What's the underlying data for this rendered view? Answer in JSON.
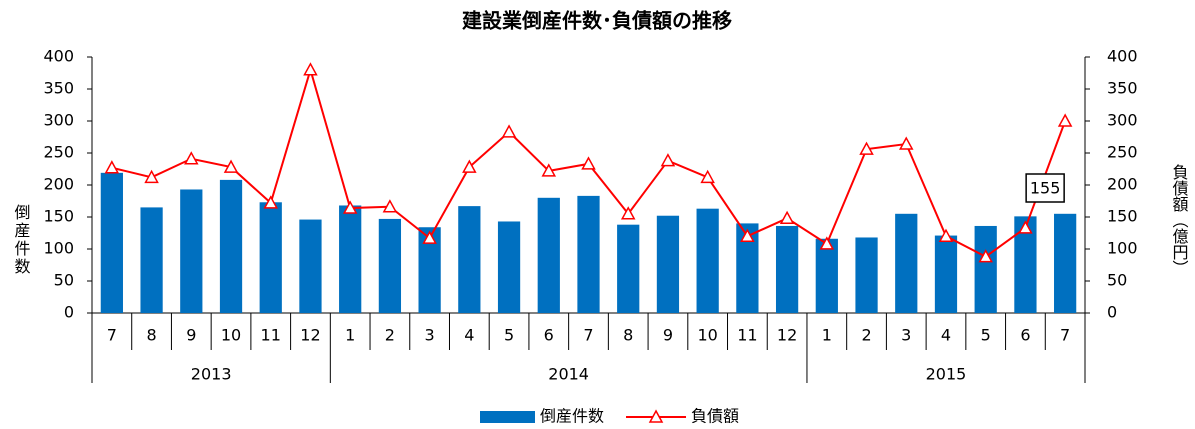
{
  "chart_data": {
    "type": "bar-line",
    "title": "建設業倒産件数･負債額の推移",
    "groups": [
      {
        "label": "2013",
        "months": [
          "7",
          "8",
          "9",
          "10",
          "11",
          "12"
        ]
      },
      {
        "label": "2014",
        "months": [
          "1",
          "2",
          "3",
          "4",
          "5",
          "6",
          "7",
          "8",
          "9",
          "10",
          "11",
          "12"
        ]
      },
      {
        "label": "2015",
        "months": [
          "1",
          "2",
          "3",
          "4",
          "5",
          "6",
          "7"
        ]
      }
    ],
    "y_label": "倒産件数",
    "y2_label": "負債額（億円）",
    "series": [
      {
        "name": "倒産件数",
        "type": "bar",
        "color": "#0070c0",
        "values": [
          219,
          165,
          193,
          208,
          173,
          146,
          168,
          147,
          134,
          167,
          143,
          180,
          183,
          138,
          152,
          163,
          140,
          136,
          116,
          118,
          155,
          121,
          136,
          151,
          155
        ]
      },
      {
        "name": "負債額",
        "type": "line",
        "axis": "y2",
        "color": "#ff0000",
        "values": [
          227,
          212,
          241,
          228,
          172,
          380,
          164,
          166,
          117,
          228,
          283,
          222,
          233,
          155,
          238,
          212,
          120,
          148,
          108,
          256,
          264,
          120,
          88,
          133,
          300
        ]
      }
    ],
    "ylim": [
      0,
      400
    ],
    "yticks": [
      0,
      50,
      100,
      150,
      200,
      250,
      300,
      350,
      400
    ],
    "y2lim": [
      0,
      400
    ],
    "y2ticks": [
      0,
      50,
      100,
      150,
      200,
      250,
      300,
      350,
      400
    ],
    "grid": false,
    "legend": "bottom"
  }
}
